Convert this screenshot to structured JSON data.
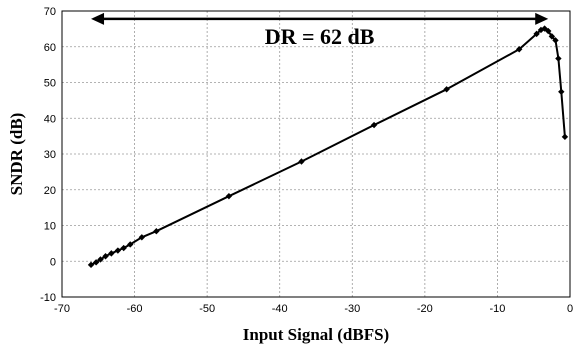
{
  "chart_data": {
    "type": "line",
    "title": "",
    "xlabel": "Input Signal (dBFS)",
    "ylabel": "SNDR (dB)",
    "xlim": [
      -70,
      0
    ],
    "ylim": [
      -10,
      70
    ],
    "x_ticks": [
      "-70",
      "-60",
      "-50",
      "-40",
      "-30",
      "-20",
      "-10",
      "0"
    ],
    "y_ticks": [
      "-10",
      "0",
      "10",
      "20",
      "30",
      "40",
      "50",
      "60",
      "70"
    ],
    "grid": true,
    "legend": "none",
    "series": [
      {
        "color": "#000000",
        "marker": "diamond",
        "x": [
          -66,
          -65.3,
          -64.7,
          -64,
          -63.2,
          -62.3,
          -61.5,
          -60.6,
          -59,
          -57,
          -47,
          -37,
          -27,
          -17,
          -7,
          -4.6,
          -4,
          -3.5,
          -3,
          -2.5,
          -2,
          -1.6,
          -1.2,
          -0.7
        ],
        "y": [
          -1,
          -0.3,
          0.5,
          1.4,
          2.2,
          3.0,
          3.7,
          4.7,
          6.7,
          8.4,
          18.2,
          27.9,
          38.1,
          48.1,
          59.3,
          63.6,
          64.7,
          65.1,
          64.4,
          62.9,
          61.8,
          56.7,
          47.4,
          34.8
        ]
      }
    ],
    "annotations": [
      {
        "text": "DR = 62 dB",
        "arrow_from_x": -66,
        "arrow_to_x": -3,
        "arrow_y": 67.8
      }
    ]
  }
}
